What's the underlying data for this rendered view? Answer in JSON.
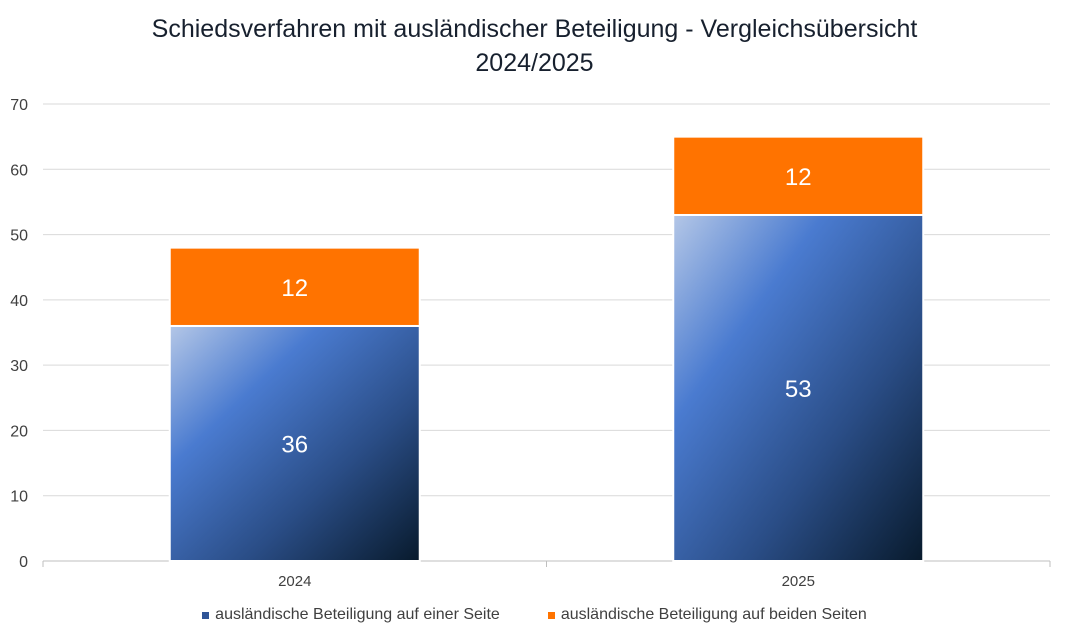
{
  "chart_data": {
    "type": "bar",
    "stacked": true,
    "title_lines": [
      "Schiedsverfahren mit ausländischer Beteiligung - Vergleichsübersicht",
      "2024/2025"
    ],
    "categories": [
      "2024",
      "2025"
    ],
    "series": [
      {
        "name": "ausländische Beteiligung auf einer Seite",
        "values": [
          36,
          53
        ],
        "color": "#4472c4"
      },
      {
        "name": "ausländische Beteiligung auf beiden Seiten",
        "values": [
          12,
          12
        ],
        "color": "#ff7300"
      }
    ],
    "ylim": [
      0,
      70
    ],
    "yticks": [
      0,
      10,
      20,
      30,
      40,
      50,
      60,
      70
    ],
    "grid": true,
    "legend_position": "bottom",
    "xlabel": "",
    "ylabel": ""
  }
}
